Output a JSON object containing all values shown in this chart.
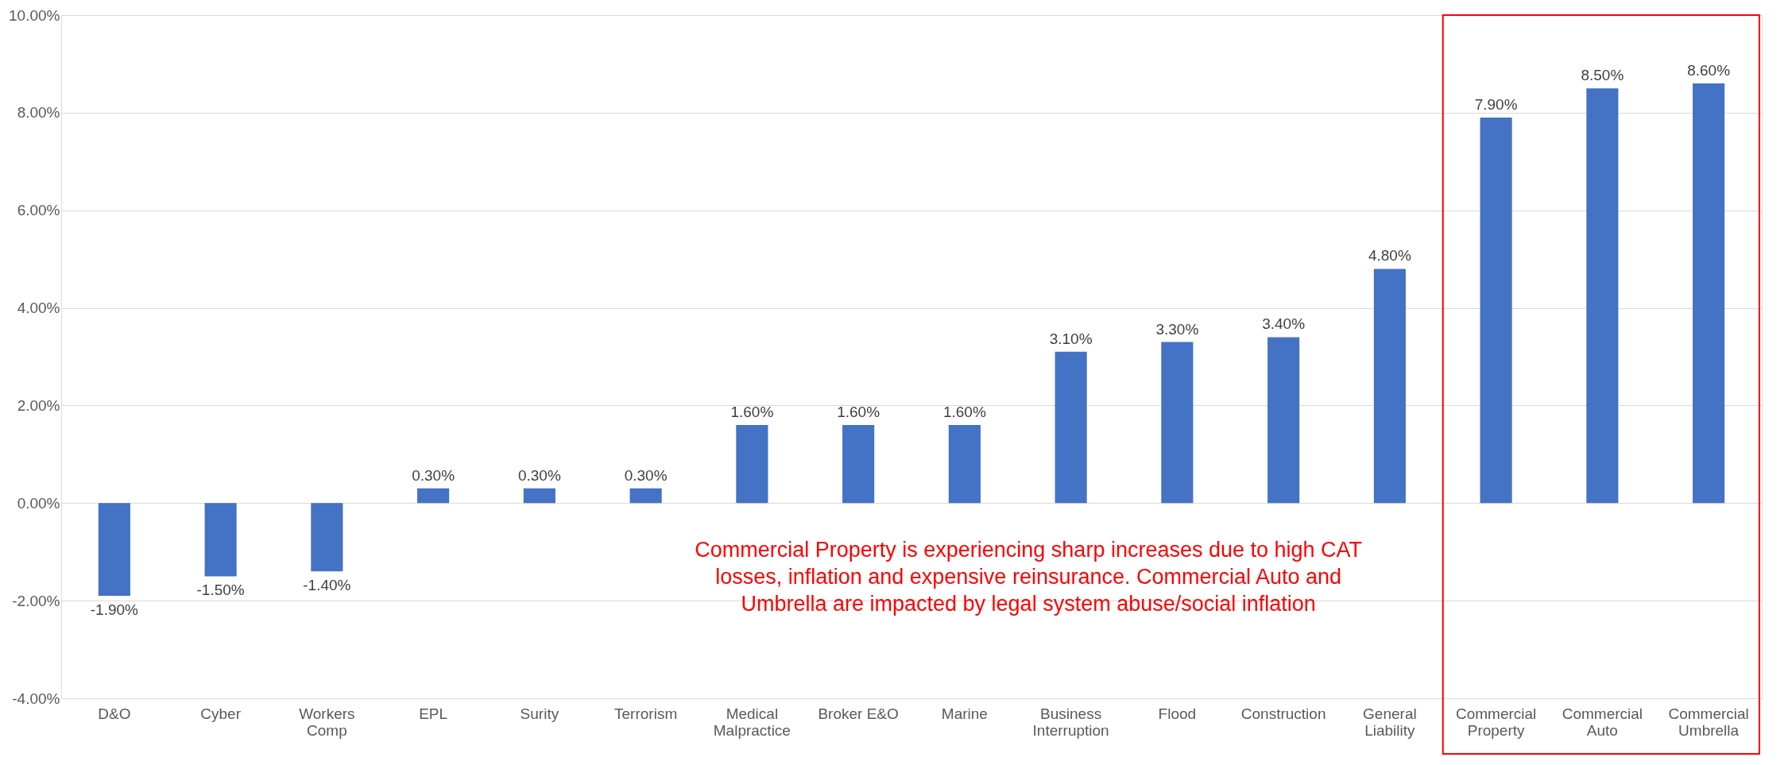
{
  "chart_data": {
    "type": "bar",
    "categories": [
      "D&O",
      "Cyber",
      "Workers\nComp",
      "EPL",
      "Surity",
      "Terrorism",
      "Medical\nMalpractice",
      "Broker E&O",
      "Marine",
      "Business\nInterruption",
      "Flood",
      "Construction",
      "General\nLiability",
      "Commercial\nProperty",
      "Commercial\nAuto",
      "Commercial\nUmbrella"
    ],
    "values": [
      -1.9,
      -1.5,
      -1.4,
      0.3,
      0.3,
      0.3,
      1.6,
      1.6,
      1.6,
      3.1,
      3.3,
      3.4,
      4.8,
      7.9,
      8.5,
      8.6
    ],
    "value_labels": [
      "-1.90%",
      "-1.50%",
      "-1.40%",
      "0.30%",
      "0.30%",
      "0.30%",
      "1.60%",
      "1.60%",
      "1.60%",
      "3.10%",
      "3.30%",
      "3.40%",
      "4.80%",
      "7.90%",
      "8.50%",
      "8.60%"
    ],
    "color": "#4472c4",
    "ylim": [
      -4,
      10
    ],
    "yticks": [
      {
        "value": -4,
        "label": "-4.00%"
      },
      {
        "value": -2,
        "label": "-2.00%"
      },
      {
        "value": 0,
        "label": "0.00%"
      },
      {
        "value": 2,
        "label": "2.00%"
      },
      {
        "value": 4,
        "label": "4.00%"
      },
      {
        "value": 6,
        "label": "6.00%"
      },
      {
        "value": 8,
        "label": "8.00%"
      },
      {
        "value": 10,
        "label": "10.00%"
      }
    ],
    "grid": "y",
    "annotations": [
      "Commercial Property is experiencing sharp increases due to high CAT\nlosses, inflation and expensive reinsurance. Commercial Auto and\nUmbrella are impacted by legal system abuse/social inflation"
    ]
  }
}
